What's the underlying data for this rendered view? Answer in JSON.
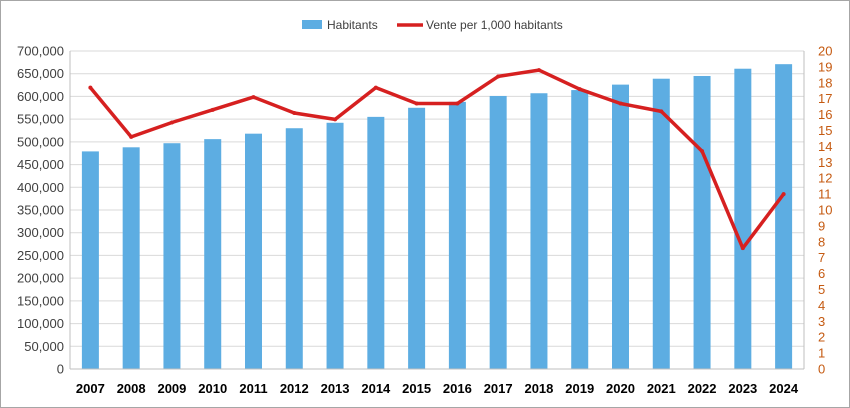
{
  "chart_data": {
    "type": "bar",
    "title": "",
    "xlabel": "",
    "ylabel": "",
    "categories": [
      "2007",
      "2008",
      "2009",
      "2010",
      "2011",
      "2012",
      "2013",
      "2014",
      "2015",
      "2016",
      "2017",
      "2018",
      "2019",
      "2020",
      "2021",
      "2022",
      "2023",
      "2024"
    ],
    "series": [
      {
        "name": "Habitants",
        "type": "bar",
        "axis": "left",
        "color": "#5dade2",
        "values": [
          479000,
          488000,
          497000,
          506000,
          518000,
          530000,
          542000,
          555000,
          575000,
          588000,
          601000,
          607000,
          614000,
          626000,
          639000,
          645000,
          661000,
          671000
        ]
      },
      {
        "name": "Vente per 1,000 habitants",
        "type": "line",
        "axis": "right",
        "color": "#d62020",
        "values": [
          17.7,
          14.6,
          15.5,
          16.3,
          17.1,
          16.1,
          15.7,
          17.7,
          16.7,
          16.7,
          18.4,
          18.8,
          17.6,
          16.7,
          16.2,
          13.7,
          7.6,
          11.0
        ]
      }
    ],
    "ylim": [
      0,
      700000
    ],
    "y2lim": [
      0,
      20
    ],
    "yticks": [
      "0",
      "50,000",
      "100,000",
      "150,000",
      "200,000",
      "250,000",
      "300,000",
      "350,000",
      "400,000",
      "450,000",
      "500,000",
      "550,000",
      "600,000",
      "650,000",
      "700,000"
    ],
    "y2ticks": [
      "0",
      "1",
      "2",
      "3",
      "4",
      "5",
      "6",
      "7",
      "8",
      "9",
      "10",
      "11",
      "12",
      "13",
      "14",
      "15",
      "16",
      "17",
      "18",
      "19",
      "20"
    ],
    "grid": true,
    "legend_position": "top-center",
    "colors": {
      "left_axis_text": "#404040",
      "right_axis_text": "#c55a11",
      "gridline": "#d9d9d9"
    }
  }
}
